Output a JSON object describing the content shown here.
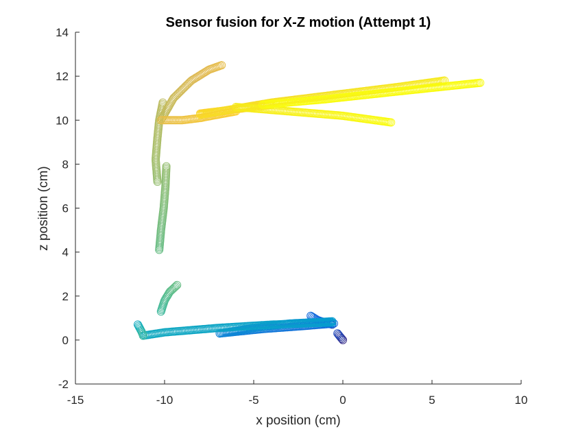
{
  "chart_data": {
    "type": "scatter",
    "title": "Sensor fusion for X-Z motion (Attempt 1)",
    "xlabel": "x position (cm)",
    "ylabel": "z position (cm)",
    "xlim": [
      -15,
      10
    ],
    "ylim": [
      -2,
      14
    ],
    "xticks": [
      -15,
      -10,
      -5,
      0,
      5,
      10
    ],
    "yticks": [
      -2,
      0,
      2,
      4,
      6,
      8,
      10,
      12,
      14
    ],
    "grid": false,
    "marker": "open-circle",
    "colormap": "parula",
    "segments": [
      {
        "color_t": 0.0,
        "points": [
          [
            0.0,
            0.0
          ],
          [
            -0.1,
            0.1
          ],
          [
            -0.2,
            0.2
          ],
          [
            -0.3,
            0.3
          ]
        ]
      },
      {
        "color_t": 0.06,
        "points": [
          [
            -0.6,
            0.7
          ],
          [
            -1.0,
            0.8
          ],
          [
            -1.4,
            0.9
          ],
          [
            -1.8,
            1.1
          ]
        ]
      },
      {
        "color_t": 0.14,
        "points": [
          [
            -0.5,
            0.75
          ],
          [
            -2.0,
            0.65
          ],
          [
            -4.5,
            0.5
          ],
          [
            -6.9,
            0.3
          ]
        ]
      },
      {
        "color_t": 0.22,
        "points": [
          [
            -6.9,
            0.3
          ],
          [
            -5.0,
            0.55
          ],
          [
            -3.0,
            0.75
          ],
          [
            -0.6,
            0.85
          ]
        ]
      },
      {
        "color_t": 0.3,
        "points": [
          [
            -0.6,
            0.8
          ],
          [
            -4.0,
            0.7
          ],
          [
            -7.0,
            0.55
          ],
          [
            -10.0,
            0.35
          ],
          [
            -11.2,
            0.2
          ]
        ]
      },
      {
        "color_t": 0.36,
        "points": [
          [
            -11.5,
            0.7
          ],
          [
            -11.3,
            0.4
          ],
          [
            -11.2,
            0.2
          ]
        ]
      },
      {
        "color_t": 0.46,
        "points": [
          [
            -10.2,
            1.3
          ],
          [
            -10.0,
            1.8
          ],
          [
            -9.7,
            2.2
          ],
          [
            -9.3,
            2.5
          ]
        ]
      },
      {
        "color_t": 0.52,
        "points": [
          [
            -10.3,
            4.1
          ],
          [
            -10.2,
            5.0
          ],
          [
            -10.05,
            6.0
          ],
          [
            -9.95,
            7.0
          ],
          [
            -9.9,
            7.9
          ]
        ]
      },
      {
        "color_t": 0.58,
        "points": [
          [
            -10.4,
            7.2
          ],
          [
            -10.5,
            8.2
          ],
          [
            -10.4,
            9.2
          ],
          [
            -10.3,
            10.0
          ],
          [
            -10.1,
            10.8
          ]
        ]
      },
      {
        "color_t": 0.64,
        "points": [
          [
            -10.2,
            10.0
          ],
          [
            -9.5,
            11.0
          ],
          [
            -8.5,
            11.8
          ],
          [
            -7.5,
            12.3
          ],
          [
            -6.8,
            12.5
          ]
        ]
      },
      {
        "color_t": 0.72,
        "points": [
          [
            -10.2,
            10.0
          ],
          [
            -9.0,
            10.0
          ],
          [
            -8.0,
            10.1
          ],
          [
            -7.0,
            10.25
          ],
          [
            -6.0,
            10.4
          ]
        ]
      },
      {
        "color_t": 0.8,
        "points": [
          [
            -8.0,
            10.3
          ],
          [
            -6.5,
            10.45
          ],
          [
            -5.0,
            10.6
          ],
          [
            -4.0,
            10.7
          ]
        ]
      },
      {
        "color_t": 0.86,
        "points": [
          [
            -8.0,
            10.25
          ],
          [
            -4.0,
            10.8
          ],
          [
            0.0,
            11.2
          ],
          [
            3.0,
            11.5
          ],
          [
            5.7,
            11.8
          ]
        ]
      },
      {
        "color_t": 0.93,
        "points": [
          [
            -6.0,
            10.6
          ],
          [
            -3.0,
            10.4
          ],
          [
            0.0,
            10.2
          ],
          [
            2.7,
            9.9
          ]
        ]
      },
      {
        "color_t": 1.0,
        "points": [
          [
            -4.5,
            10.7
          ],
          [
            -1.0,
            10.95
          ],
          [
            3.0,
            11.3
          ],
          [
            7.7,
            11.7
          ]
        ]
      }
    ]
  }
}
